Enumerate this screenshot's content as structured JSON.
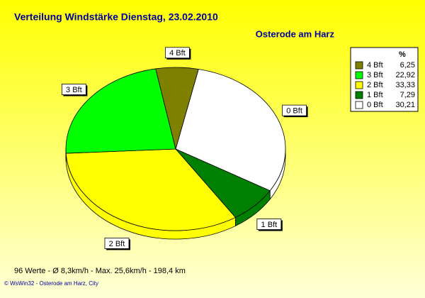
{
  "chart_data": {
    "type": "pie3d",
    "title": "Verteilung Windstärke  Dienstag, 23.02.2010",
    "subtitle": "Osterode am Harz",
    "legend_title": "%",
    "categories": [
      "4 Bft",
      "3 Bft",
      "2 Bft",
      "1 Bft",
      "0 Bft"
    ],
    "values": [
      6.25,
      22.92,
      33.33,
      7.29,
      30.21
    ],
    "value_labels": [
      "6,25",
      "22,92",
      "33,33",
      "7,29",
      "30,21"
    ],
    "colors": [
      "#808000",
      "#00ff00",
      "#ffff00",
      "#008000",
      "#ffffff"
    ],
    "footer": "96 Werte   -   Ø 8,3km/h  -  Max. 25,6km/h   -   198,4 km",
    "credit": "© WsWin32  -  Osterode am Harz, City"
  }
}
